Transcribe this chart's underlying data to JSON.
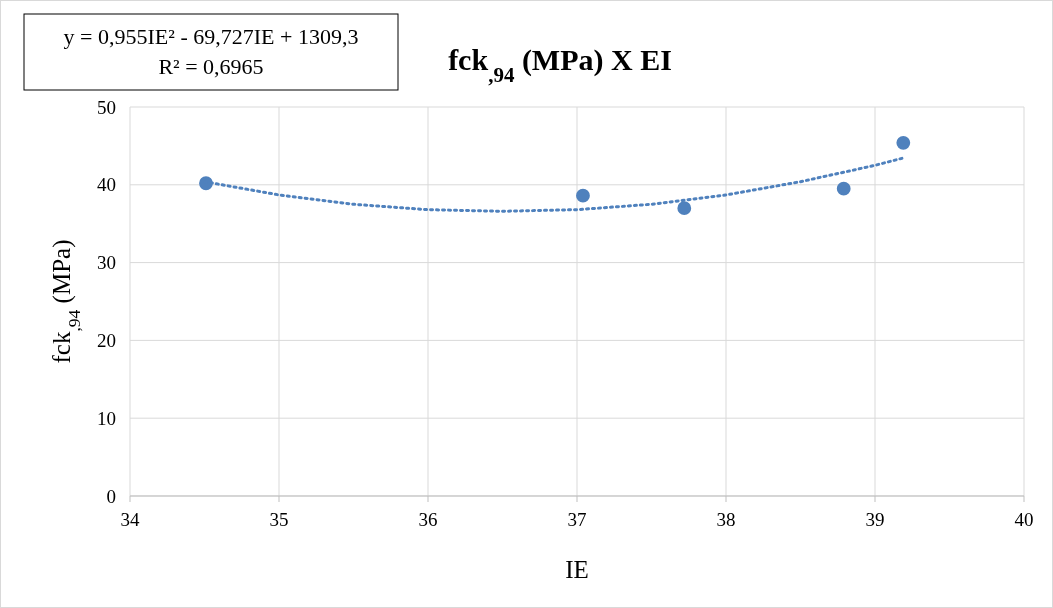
{
  "chart_data": {
    "type": "scatter",
    "title": "fck$_{,94}$ (MPa) X EI",
    "xlabel": "IE",
    "ylabel": "fck$_{,94}$ (MPa)",
    "annotations": [
      "y = 0,955IE² - 69,727IE + 1309,3",
      "R² = 0,6965"
    ],
    "xlim": [
      34,
      40
    ],
    "xticks": [
      34,
      35,
      36,
      37,
      38,
      39,
      40
    ],
    "ylim": [
      0,
      50
    ],
    "yticks": [
      0,
      10,
      20,
      30,
      40,
      50
    ],
    "grid": true,
    "series": [
      {
        "color": "#4f81bd",
        "marker": "circle",
        "x": [
          34.51,
          37.04,
          37.72,
          38.79,
          39.19
        ],
        "values": [
          40.2,
          38.6,
          37.0,
          39.5,
          45.4
        ]
      },
      {
        "type": "line",
        "color": "#4f81bd",
        "marker": "none",
        "line_style": "dotted",
        "x": [
          34.5,
          35,
          35.5,
          36,
          36.5,
          37,
          37.5,
          38,
          38.5,
          39,
          39.2
        ],
        "values": [
          40.4,
          38.7,
          37.5,
          36.8,
          36.6,
          36.8,
          37.5,
          38.7,
          40.4,
          42.5,
          43.5
        ]
      }
    ]
  }
}
